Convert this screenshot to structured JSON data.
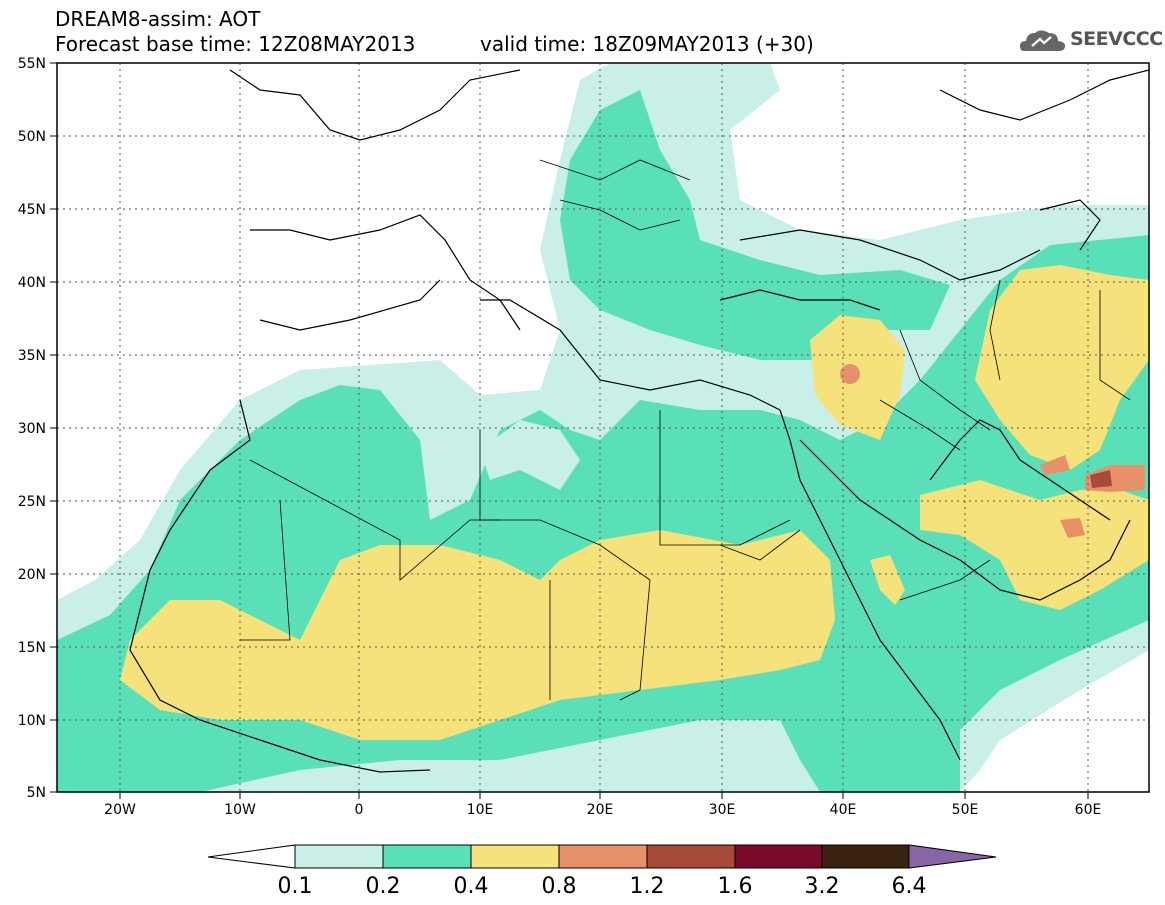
{
  "header": {
    "title": "DREAM8-assim: AOT",
    "base_time": "Forecast base time: 12Z08MAY2013",
    "valid_time": "valid time: 18Z09MAY2013 (+30)",
    "logo_text": "SEEVCCC"
  },
  "map": {
    "lat_labels": [
      "55N",
      "50N",
      "45N",
      "40N",
      "35N",
      "30N",
      "25N",
      "20N",
      "15N",
      "10N",
      "5N"
    ],
    "lon_labels": [
      "20W",
      "10W",
      "0",
      "10E",
      "20E",
      "30E",
      "40E",
      "50E",
      "60E"
    ],
    "lat_range": [
      5,
      55
    ],
    "lon_range": [
      -25,
      65
    ],
    "grid": true
  },
  "colorbar": {
    "labels": [
      "0.1",
      "0.2",
      "0.4",
      "0.8",
      "1.2",
      "1.6",
      "3.2",
      "6.4"
    ],
    "colors": [
      "#ffffff",
      "#c8f0e8",
      "#5ae0b8",
      "#f5e27a",
      "#e8906a",
      "#a84a3a",
      "#7a0c2a",
      "#3a2210",
      "#8a64a8"
    ]
  }
}
